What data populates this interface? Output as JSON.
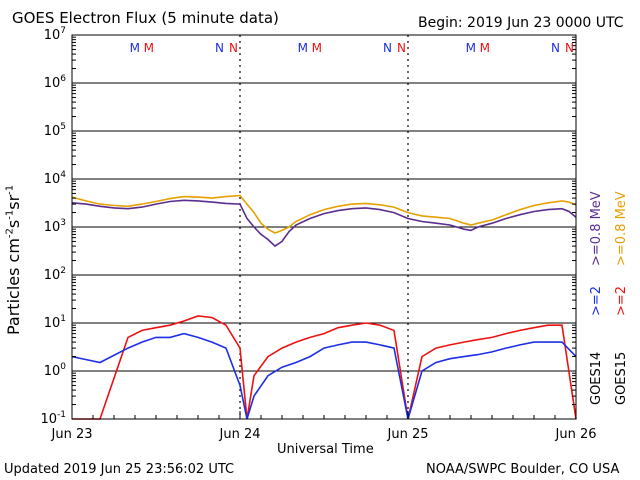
{
  "header": {
    "title": "GOES Electron Flux (5 minute data)",
    "begin": "Begin: 2019 Jun 23 0000 UTC"
  },
  "footer": {
    "updated": "Updated 2019 Jun 25 23:56:02 UTC",
    "source": "NOAA/SWPC Boulder, CO USA"
  },
  "colors": {
    "goes14_ge08": "#5b2d8e",
    "goes15_ge08": "#e6a000",
    "goes14_ge2": "#1d2fe6",
    "goes15_ge2": "#ee1111",
    "grid": "#000000"
  },
  "legend": {
    "goes14": "GOES14",
    "goes15": "GOES15",
    "g14_ge2": ">=2",
    "g15_ge2": ">=2",
    "g14_ge08": ">=0.8  MeV",
    "g15_ge08": ">=0.8  MeV"
  },
  "chart_data": {
    "type": "line",
    "title": "GOES Electron Flux (5 minute data)",
    "xlabel": "Universal Time",
    "ylabel": "Particles cm-2s-1sr-1",
    "yscale": "log",
    "ylim": [
      0.1,
      10000000
    ],
    "xlim": [
      0,
      72
    ],
    "x_unit": "hours since 2019 Jun 23 0000 UTC",
    "x_ticks": [
      {
        "x": 0,
        "label": "Jun 23"
      },
      {
        "x": 24,
        "label": "Jun 24"
      },
      {
        "x": 48,
        "label": "Jun 25"
      },
      {
        "x": 72,
        "label": "Jun 26"
      }
    ],
    "y_ticks": [
      {
        "base": "10",
        "exp": "-1"
      },
      {
        "base": "10",
        "exp": "0"
      },
      {
        "base": "10",
        "exp": "1"
      },
      {
        "base": "10",
        "exp": "2"
      },
      {
        "base": "10",
        "exp": "3"
      },
      {
        "base": "10",
        "exp": "4"
      },
      {
        "base": "10",
        "exp": "5"
      },
      {
        "base": "10",
        "exp": "6"
      },
      {
        "base": "10",
        "exp": "7"
      }
    ],
    "threshold": 1000,
    "markers": [
      {
        "x": 10,
        "label": "M",
        "color": "#1d2fe6"
      },
      {
        "x": 12,
        "label": "M",
        "color": "#ee1111"
      },
      {
        "x": 22,
        "label": "N",
        "color": "#1d2fe6"
      },
      {
        "x": 24,
        "label": "N",
        "color": "#ee1111"
      },
      {
        "x": 34,
        "label": "M",
        "color": "#1d2fe6"
      },
      {
        "x": 36,
        "label": "M",
        "color": "#ee1111"
      },
      {
        "x": 46,
        "label": "N",
        "color": "#1d2fe6"
      },
      {
        "x": 48,
        "label": "N",
        "color": "#ee1111"
      },
      {
        "x": 58,
        "label": "M",
        "color": "#1d2fe6"
      },
      {
        "x": 60,
        "label": "M",
        "color": "#ee1111"
      },
      {
        "x": 70,
        "label": "N",
        "color": "#1d2fe6"
      },
      {
        "x": 72,
        "label": "N",
        "color": "#ee1111"
      }
    ],
    "midnight_lines": [
      24,
      48
    ],
    "series": [
      {
        "name": "GOES15 >=0.8 MeV",
        "color": "#e6a000",
        "x": [
          0,
          2,
          4,
          6,
          8,
          10,
          12,
          14,
          16,
          18,
          20,
          22,
          24,
          25,
          26,
          27,
          28,
          29,
          30,
          31,
          32,
          34,
          36,
          38,
          40,
          42,
          44,
          46,
          48,
          50,
          52,
          54,
          56,
          57,
          58,
          60,
          62,
          64,
          66,
          68,
          70,
          71,
          72
        ],
        "y": [
          4200,
          3500,
          3000,
          2800,
          2700,
          3000,
          3400,
          3900,
          4300,
          4200,
          4000,
          4300,
          4500,
          3000,
          2000,
          1200,
          900,
          750,
          850,
          1000,
          1300,
          1800,
          2300,
          2700,
          3000,
          3100,
          2900,
          2600,
          2000,
          1700,
          1600,
          1500,
          1200,
          1100,
          1200,
          1400,
          1800,
          2300,
          2800,
          3200,
          3500,
          3300,
          2900
        ]
      },
      {
        "name": "GOES14 >=0.8 MeV",
        "color": "#5b2d8e",
        "x": [
          0,
          2,
          4,
          6,
          8,
          10,
          12,
          14,
          16,
          18,
          20,
          22,
          24,
          25,
          26,
          27,
          28,
          29,
          30,
          31,
          32,
          34,
          36,
          38,
          40,
          42,
          44,
          46,
          48,
          50,
          52,
          54,
          56,
          57,
          58,
          60,
          62,
          64,
          66,
          68,
          70,
          71,
          72
        ],
        "y": [
          3200,
          3000,
          2700,
          2500,
          2400,
          2600,
          3000,
          3400,
          3600,
          3500,
          3300,
          3100,
          3000,
          1500,
          1000,
          700,
          550,
          400,
          500,
          800,
          1100,
          1500,
          1900,
          2200,
          2400,
          2500,
          2300,
          2000,
          1500,
          1300,
          1200,
          1100,
          900,
          850,
          1000,
          1200,
          1500,
          1800,
          2100,
          2300,
          2400,
          2100,
          1600
        ]
      },
      {
        "name": "GOES15 >=2 MeV",
        "color": "#ee1111",
        "x": [
          0,
          4,
          8,
          10,
          12,
          14,
          16,
          18,
          20,
          22,
          24,
          25,
          26,
          28,
          30,
          32,
          34,
          36,
          38,
          40,
          42,
          44,
          46,
          48,
          50,
          52,
          54,
          56,
          58,
          60,
          62,
          64,
          66,
          68,
          70,
          72
        ],
        "y": [
          0.1,
          0.1,
          5,
          7,
          8,
          9,
          11,
          14,
          13,
          9,
          3,
          0.1,
          0.8,
          2,
          3,
          4,
          5,
          6,
          8,
          9,
          10,
          9,
          7,
          0.1,
          2,
          3,
          3.5,
          4,
          4.5,
          5,
          6,
          7,
          8,
          9,
          9,
          0.1
        ]
      },
      {
        "name": "GOES14 >=2 MeV",
        "color": "#1d2fe6",
        "x": [
          0,
          4,
          8,
          10,
          12,
          14,
          16,
          18,
          20,
          22,
          24,
          25,
          26,
          28,
          30,
          32,
          34,
          36,
          38,
          40,
          42,
          44,
          46,
          48,
          50,
          52,
          54,
          56,
          58,
          60,
          62,
          64,
          66,
          68,
          70,
          72
        ],
        "y": [
          2,
          1.5,
          3,
          4,
          5,
          5,
          6,
          5,
          4,
          3,
          0.5,
          0.1,
          0.3,
          0.8,
          1.2,
          1.5,
          2,
          3,
          3.5,
          4,
          4,
          3.5,
          3,
          0.1,
          1,
          1.5,
          1.8,
          2,
          2.2,
          2.5,
          3,
          3.5,
          4,
          4,
          4,
          2
        ]
      }
    ]
  }
}
